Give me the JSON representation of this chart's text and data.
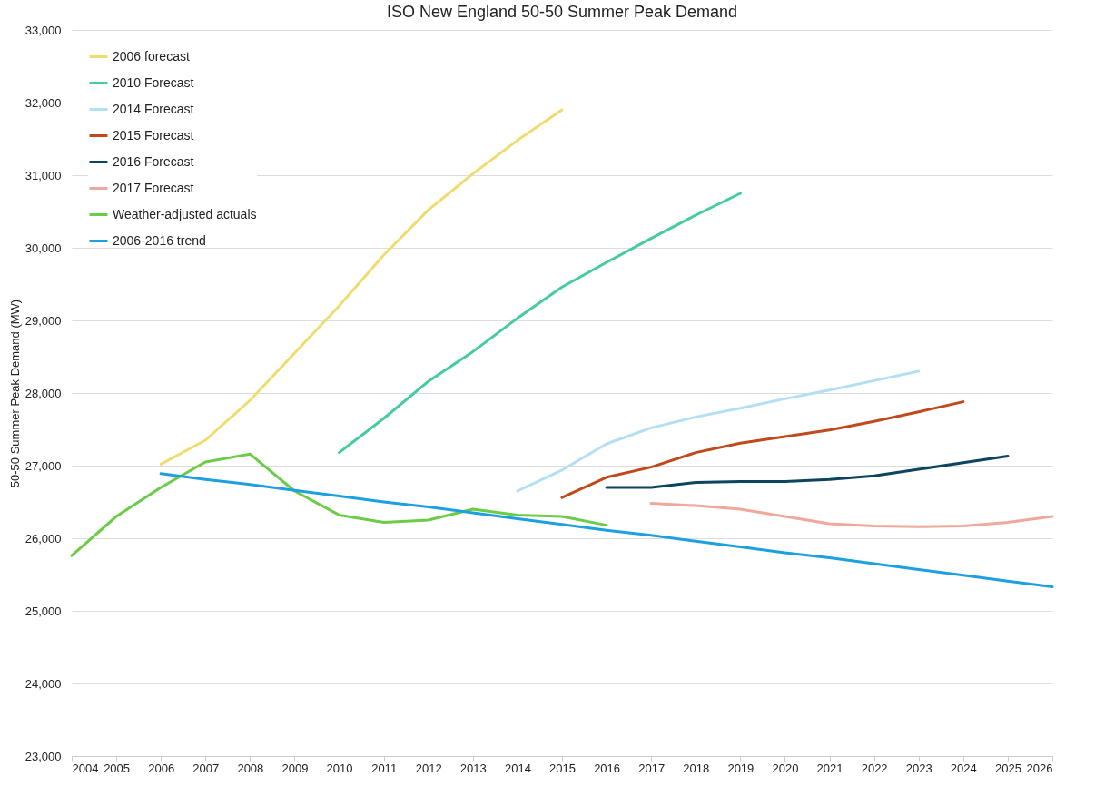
{
  "chart_data": {
    "type": "line",
    "title": "ISO New England 50-50 Summer Peak Demand",
    "ylabel": "50-50 Summer Peak Demand (MW)",
    "xlim": [
      2004,
      2026
    ],
    "xticks": [
      2004,
      2005,
      2006,
      2007,
      2008,
      2009,
      2010,
      2011,
      2012,
      2013,
      2014,
      2015,
      2016,
      2017,
      2018,
      2019,
      2020,
      2021,
      2022,
      2023,
      2024,
      2025,
      2026
    ],
    "ylim": [
      23000,
      33000
    ],
    "yticks": [
      {
        "value": 23000,
        "label": "23,000"
      },
      {
        "value": 24000,
        "label": "24,000"
      },
      {
        "value": 25000,
        "label": "25,000"
      },
      {
        "value": 26000,
        "label": "26,000"
      },
      {
        "value": 27000,
        "label": "27,000"
      },
      {
        "value": 28000,
        "label": "28,000"
      },
      {
        "value": 29000,
        "label": "29,000"
      },
      {
        "value": 30000,
        "label": "30,000"
      },
      {
        "value": 31000,
        "label": "31,000"
      },
      {
        "value": 32000,
        "label": "32,000"
      },
      {
        "value": 33000,
        "label": "33,000"
      }
    ],
    "grid": "y",
    "legend": "top left",
    "marker": "none",
    "line_style": "solid",
    "series": [
      {
        "name": "2006 forecast",
        "color": "#f0dc6e",
        "x": [
          2006,
          2007,
          2008,
          2009,
          2010,
          2011,
          2012,
          2013,
          2014,
          2015
        ],
        "values": [
          27020,
          27350,
          27900,
          28550,
          29200,
          29900,
          30520,
          31020,
          31480,
          31900
        ]
      },
      {
        "name": "2010 Forecast",
        "color": "#45cc9c",
        "x": [
          2010,
          2011,
          2012,
          2013,
          2014,
          2015,
          2016,
          2017,
          2018,
          2019
        ],
        "values": [
          27180,
          27650,
          28160,
          28570,
          29030,
          29460,
          29800,
          30130,
          30450,
          30750
        ]
      },
      {
        "name": "2014 Forecast",
        "color": "#b3dff5",
        "x": [
          2014,
          2015,
          2016,
          2017,
          2018,
          2019,
          2020,
          2021,
          2022,
          2023
        ],
        "values": [
          26650,
          26940,
          27300,
          27520,
          27670,
          27790,
          27920,
          28040,
          28170,
          28300
        ]
      },
      {
        "name": "2015 Forecast",
        "color": "#c04a1c",
        "x": [
          2015,
          2016,
          2017,
          2018,
          2019,
          2020,
          2021,
          2022,
          2023,
          2024
        ],
        "values": [
          26560,
          26840,
          26980,
          27180,
          27310,
          27400,
          27490,
          27610,
          27740,
          27880
        ]
      },
      {
        "name": "2016 Forecast",
        "color": "#0d4560",
        "x": [
          2016,
          2017,
          2018,
          2019,
          2020,
          2021,
          2022,
          2023,
          2024,
          2025
        ],
        "values": [
          26700,
          26700,
          26770,
          26780,
          26780,
          26810,
          26860,
          26950,
          27040,
          27130
        ]
      },
      {
        "name": "2017 Forecast",
        "color": "#f0a89c",
        "x": [
          2017,
          2018,
          2019,
          2020,
          2021,
          2022,
          2023,
          2024,
          2025,
          2026
        ],
        "values": [
          26480,
          26450,
          26400,
          26300,
          26200,
          26170,
          26160,
          26170,
          26220,
          26300
        ]
      },
      {
        "name": "Weather-adjusted actuals",
        "color": "#6ccc48",
        "x": [
          2004,
          2005,
          2006,
          2007,
          2008,
          2009,
          2010,
          2011,
          2012,
          2013,
          2014,
          2015,
          2016
        ],
        "values": [
          25760,
          26300,
          26700,
          27050,
          27160,
          26650,
          26320,
          26220,
          26250,
          26400,
          26320,
          26300,
          26180
        ]
      },
      {
        "name": "2006-2016 trend",
        "color": "#1ea0e0",
        "x": [
          2006,
          2007,
          2008,
          2009,
          2010,
          2011,
          2012,
          2013,
          2014,
          2015,
          2016,
          2017,
          2018,
          2019,
          2020,
          2021,
          2022,
          2023,
          2024,
          2025,
          2026
        ],
        "values": [
          26890,
          26810,
          26740,
          26660,
          26580,
          26500,
          26430,
          26350,
          26270,
          26190,
          26110,
          26040,
          25960,
          25880,
          25800,
          25730,
          25650,
          25570,
          25490,
          25410,
          25330
        ]
      }
    ]
  }
}
